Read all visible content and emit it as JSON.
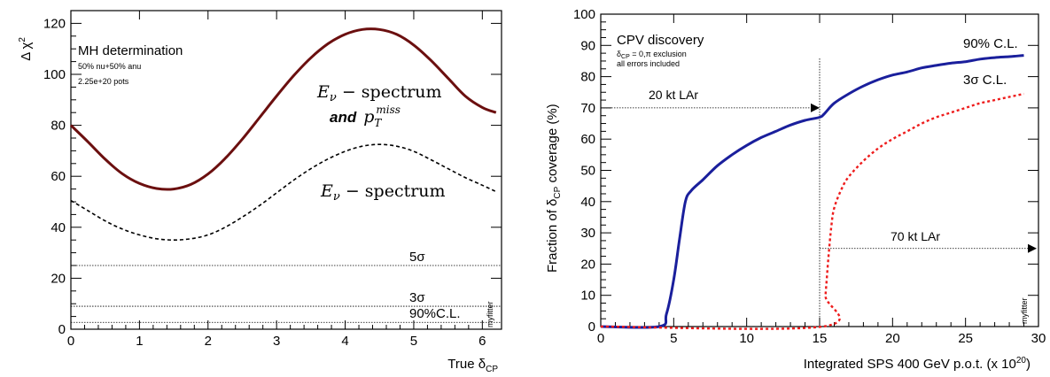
{
  "chart_data": [
    {
      "type": "line",
      "title": "MH determination",
      "notes": [
        "50% nu+50% anu",
        "2.25e+20 pots"
      ],
      "ylabel": "Δ χ",
      "ylabel_sup": "2",
      "xlabel": "True δ",
      "xlabel_sub": "CP",
      "xlim": [
        0,
        6.28
      ],
      "ylim": [
        0,
        125
      ],
      "xticks": [
        0,
        1,
        2,
        3,
        4,
        5,
        6
      ],
      "yticks": [
        0,
        20,
        40,
        60,
        80,
        100,
        120
      ],
      "x": [
        0,
        0.25,
        0.5,
        0.75,
        1.0,
        1.25,
        1.5,
        1.75,
        2.0,
        2.25,
        2.5,
        2.75,
        3.0,
        3.25,
        3.5,
        3.75,
        4.0,
        4.25,
        4.5,
        4.75,
        5.0,
        5.25,
        5.5,
        5.75,
        6.0,
        6.2
      ],
      "series": [
        {
          "name": "E_ν − spectrum and p_T^miss",
          "color": "#6b0f0f",
          "values": [
            80,
            73.5,
            66.7,
            61.0,
            57.2,
            55.2,
            55.0,
            56.8,
            60.9,
            67.0,
            74.6,
            83.0,
            91.5,
            99.5,
            106.5,
            112.0,
            115.7,
            117.6,
            117.6,
            115.7,
            111.5,
            105.5,
            98.5,
            91.5,
            87.0,
            85.0
          ]
        },
        {
          "name": "E_ν − spectrum",
          "color": "#000000",
          "dash": true,
          "values": [
            50.5,
            46.5,
            42.5,
            39.3,
            37.0,
            35.5,
            35.0,
            35.5,
            37.0,
            40.0,
            44.0,
            48.5,
            53.5,
            58.5,
            63.0,
            66.8,
            69.8,
            71.8,
            72.5,
            71.8,
            69.8,
            66.5,
            63.0,
            59.5,
            56.5,
            54.0
          ]
        }
      ],
      "hlines": [
        {
          "label": "5σ",
          "y": 25
        },
        {
          "label": "3σ",
          "y": 9
        },
        {
          "label": "90%C.L.",
          "y": 2.7
        }
      ],
      "series_labels": {
        "upper_line1": "E",
        "upper_line1_sub": "ν",
        "upper_line1_rest": " − spectrum",
        "upper_line2_and": "and",
        "upper_line2_p": "p",
        "upper_line2_sub": "T",
        "upper_line2_sup": "miss",
        "lower": "E",
        "lower_sub": "ν",
        "lower_rest": " − spectrum"
      },
      "watermark": "myfitter"
    },
    {
      "type": "line",
      "title": "CPV discovery",
      "notes": [
        "δ",
        "CP",
        " = 0,π exclusion",
        "all errors included"
      ],
      "ylabel": "Fraction of δ",
      "ylabel_sub": "CP",
      "ylabel_rest": " coverage (%)",
      "xlabel": "Integrated SPS 400 GeV p.o.t. (x 10",
      "xlabel_sup": "20",
      "xlabel_end": ")",
      "xlim": [
        0,
        30
      ],
      "ylim": [
        0,
        100
      ],
      "xticks": [
        0,
        5,
        10,
        15,
        20,
        25,
        30
      ],
      "yticks": [
        0,
        10,
        20,
        30,
        40,
        50,
        60,
        70,
        80,
        90,
        100
      ],
      "series": [
        {
          "name": "90% C.L.",
          "color": "#1a1f9c",
          "x": [
            0,
            4.0,
            4.5,
            5.0,
            5.4,
            5.8,
            6.2,
            7,
            8,
            9,
            10,
            11,
            12,
            13,
            14,
            15,
            15.3,
            16,
            17,
            18,
            19,
            20,
            21,
            22,
            23,
            24,
            25,
            26,
            27,
            28,
            29
          ],
          "values": [
            0,
            0,
            4,
            15,
            28,
            40,
            43.5,
            47,
            51.5,
            55,
            58,
            60.5,
            62.5,
            64.5,
            66,
            67,
            68,
            71.5,
            74.5,
            77,
            79,
            80.5,
            81.5,
            82.8,
            83.6,
            84.3,
            84.8,
            85.6,
            86.1,
            86.4,
            86.8
          ]
        },
        {
          "name": "3σ C.L.",
          "color": "#ee1c1c",
          "dash": true,
          "x": [
            0,
            15.2,
            15.4,
            15.6,
            15.8,
            16,
            16.5,
            17,
            18,
            19,
            20,
            21,
            22,
            23,
            24,
            25,
            26,
            27,
            28,
            29
          ],
          "values": [
            0,
            0,
            10,
            22,
            32,
            38,
            44,
            48,
            53,
            57,
            60,
            62.5,
            65,
            67,
            68.5,
            70,
            71.5,
            72.5,
            73.5,
            74.5
          ]
        }
      ],
      "vline_x": 15,
      "annotations": [
        {
          "label": "20 kt LAr",
          "y": 70
        },
        {
          "label": "70 kt LAr",
          "y": 25
        }
      ],
      "series_labels": {
        "s1": "90% C.L.",
        "s2": "3σ C.L."
      },
      "watermark": "myfitter"
    }
  ]
}
